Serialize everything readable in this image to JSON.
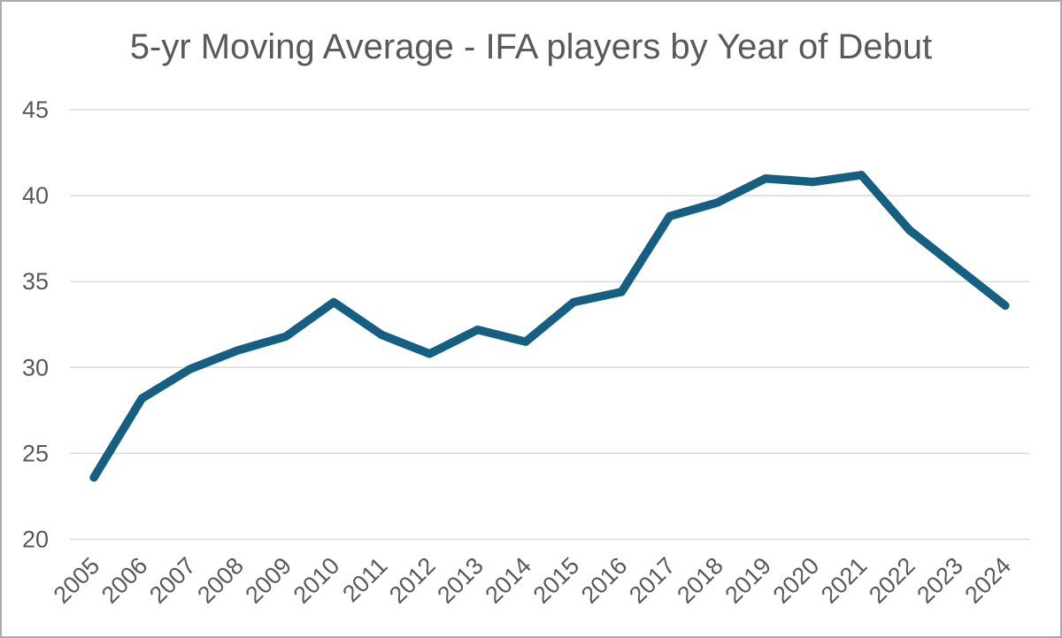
{
  "chart_data": {
    "type": "line",
    "title": "5-yr Moving Average - IFA players by Year of Debut",
    "categories": [
      "2005",
      "2006",
      "2007",
      "2008",
      "2009",
      "2010",
      "2011",
      "2012",
      "2013",
      "2014",
      "2015",
      "2016",
      "2017",
      "2018",
      "2019",
      "2020",
      "2021",
      "2022",
      "2023",
      "2024"
    ],
    "values": [
      23.6,
      28.2,
      29.9,
      31.0,
      31.8,
      33.8,
      31.9,
      30.8,
      32.2,
      31.5,
      33.8,
      34.4,
      38.8,
      39.6,
      41.0,
      40.8,
      41.2,
      38.0,
      35.8,
      33.6
    ],
    "xlabel": "",
    "ylabel": "",
    "ylim": [
      20,
      45
    ],
    "yticks": [
      20,
      25,
      30,
      35,
      40,
      45
    ],
    "grid": "horizontal",
    "legend": "none",
    "colors": {
      "line": "#156082",
      "gridline": "#D9D9D9",
      "labels": "#595959",
      "title": "#595959",
      "frame_border": "#ABABAB",
      "background": "#FFFFFF"
    }
  }
}
